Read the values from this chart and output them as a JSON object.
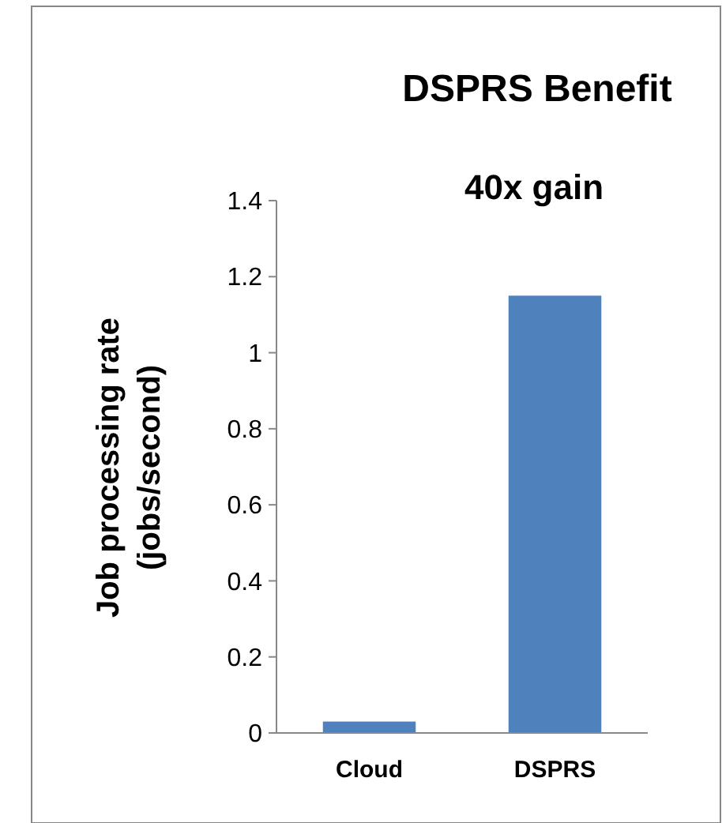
{
  "chart_data": {
    "type": "bar",
    "title": "DSPRS Benefit",
    "ylabel": "Job processing rate\n(jobs/second)",
    "categories": [
      "Cloud",
      "DSPRS"
    ],
    "values": [
      0.03,
      1.15
    ],
    "color": "#4f81bd",
    "ylim": [
      0,
      1.4
    ],
    "yticks": [
      0,
      0.2,
      0.4,
      0.6,
      0.8,
      1,
      1.2,
      1.4
    ],
    "grid": false,
    "annotations": [
      "40x gain"
    ]
  }
}
